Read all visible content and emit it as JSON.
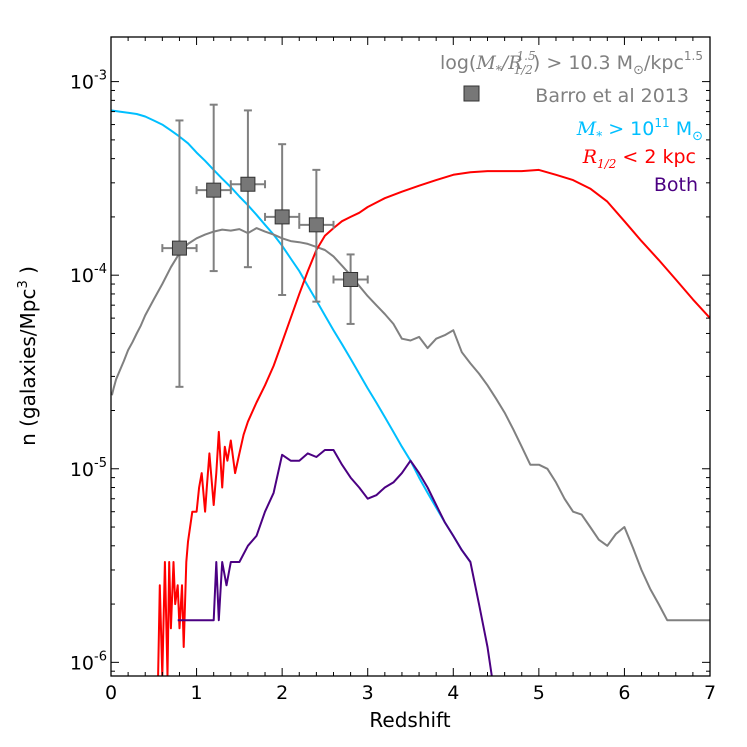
{
  "chart_data": {
    "type": "line",
    "xlabel": "Redshift",
    "ylabel_main": "n (galaxies/Mpc",
    "ylabel_sup": "3",
    "ylabel_end": " )",
    "xlim": [
      0,
      7
    ],
    "ylim": [
      8.5e-07,
      0.0017
    ],
    "yscale": "log",
    "x_ticks": [
      0,
      1,
      2,
      3,
      4,
      5,
      6,
      7
    ],
    "x_tick_labels": [
      "0",
      "1",
      "2",
      "3",
      "4",
      "5",
      "6",
      "7"
    ],
    "y_ticks": [
      {
        "value": 0.001,
        "base": "10",
        "exp": "-3"
      },
      {
        "value": 0.0001,
        "base": "10",
        "exp": "-4"
      },
      {
        "value": 1e-05,
        "base": "10",
        "exp": "-5"
      },
      {
        "value": 1e-06,
        "base": "10",
        "exp": "-6"
      }
    ],
    "legend": [
      {
        "id": "density",
        "pre_math": "log(",
        "math": "M",
        "math_sub": "*",
        "math_mid": "/R",
        "math_sup": "1.5",
        "math_sub2": "1/2",
        "post": ") > 10.3 M",
        "post_sub": "⊙",
        "post2": "/kpc",
        "post_sup": "1.5",
        "color": "#808080"
      },
      {
        "id": "barro",
        "text": "Barro et al 2013",
        "color": "#808080"
      },
      {
        "id": "mass",
        "math": "M",
        "math_sub": "*",
        "text": " > 10",
        "sup": "11",
        "text2": " M",
        "sub2": "⊙",
        "color": "#00bfff"
      },
      {
        "id": "size",
        "math": "R",
        "math_sub": "1/2",
        "text": " < 2 kpc",
        "color": "#ff0000"
      },
      {
        "id": "both",
        "text": "Both",
        "color": "#4b0082"
      }
    ],
    "series": [
      {
        "name": "Mass > 1e11",
        "color": "#00bfff",
        "x": [
          0,
          0.1,
          0.2,
          0.3,
          0.4,
          0.5,
          0.6,
          0.7,
          0.8,
          0.9,
          1.0,
          1.1,
          1.2,
          1.3,
          1.4,
          1.5,
          1.6,
          1.7,
          1.8,
          1.9,
          2.0,
          2.1,
          2.2,
          2.3,
          2.4,
          2.5,
          2.6,
          2.7,
          2.8,
          2.9,
          3.0,
          3.1,
          3.2,
          3.3,
          3.4,
          3.5,
          3.6,
          3.7,
          3.8,
          3.9,
          4.0,
          4.1,
          4.2
        ],
        "y": [
          0.00071,
          0.0007,
          0.00069,
          0.00068,
          0.00066,
          0.00063,
          0.0006,
          0.00056,
          0.00052,
          0.00048,
          0.00043,
          0.00039,
          0.00035,
          0.000315,
          0.000285,
          0.000255,
          0.00023,
          0.000205,
          0.000182,
          0.000162,
          0.000142,
          0.000122,
          0.000105,
          8.8e-05,
          7.4e-05,
          6.2e-05,
          5.2e-05,
          4.4e-05,
          3.7e-05,
          3.1e-05,
          2.6e-05,
          2.2e-05,
          1.85e-05,
          1.55e-05,
          1.3e-05,
          1.1e-05,
          9e-06,
          7.5e-06,
          6.3e-06,
          5.3e-06,
          4.5e-06,
          3.8e-06,
          3.3e-06
        ]
      },
      {
        "name": "Compact density",
        "color": "#808080",
        "x": [
          0.01,
          0.03,
          0.06,
          0.1,
          0.15,
          0.2,
          0.25,
          0.3,
          0.35,
          0.4,
          0.5,
          0.6,
          0.7,
          0.8,
          0.9,
          1.0,
          1.1,
          1.2,
          1.3,
          1.4,
          1.5,
          1.6,
          1.7,
          1.8,
          1.9,
          2.0,
          2.1,
          2.2,
          2.3,
          2.4,
          2.5,
          2.6,
          2.7,
          2.8,
          2.9,
          3.0,
          3.1,
          3.2,
          3.3,
          3.4,
          3.5,
          3.6,
          3.7,
          3.8,
          3.9,
          4.0,
          4.1,
          4.2,
          4.3,
          4.4,
          4.5,
          4.6,
          4.7,
          4.8,
          4.9,
          5.0,
          5.1,
          5.2,
          5.3,
          5.4,
          5.5,
          5.6,
          5.7,
          5.8,
          5.9,
          6.0,
          6.1,
          6.2,
          6.3,
          6.4,
          6.5,
          6.6,
          6.7,
          6.8,
          6.9,
          7.0
        ],
        "y": [
          2.4e-05,
          2.6e-05,
          2.9e-05,
          3.2e-05,
          3.6e-05,
          4.1e-05,
          4.5e-05,
          5e-05,
          5.5e-05,
          6.2e-05,
          7.5e-05,
          9e-05,
          0.00011,
          0.00013,
          0.000145,
          0.000155,
          0.000162,
          0.000168,
          0.000172,
          0.00017,
          0.000173,
          0.000165,
          0.000175,
          0.000168,
          0.000162,
          0.000155,
          0.00015,
          0.000148,
          0.000145,
          0.00014,
          0.000135,
          0.000125,
          0.000112,
          0.0001,
          8.8e-05,
          7.8e-05,
          7e-05,
          6.3e-05,
          5.6e-05,
          4.7e-05,
          4.6e-05,
          4.8e-05,
          4.2e-05,
          4.7e-05,
          4.9e-05,
          5.2e-05,
          4e-05,
          3.5e-05,
          3.1e-05,
          2.7e-05,
          2.3e-05,
          1.95e-05,
          1.6e-05,
          1.3e-05,
          1.05e-05,
          1.05e-05,
          1e-05,
          8.5e-06,
          7e-06,
          6e-06,
          5.8e-06,
          5e-06,
          4.3e-06,
          4e-06,
          4.6e-06,
          5e-06,
          3.9e-06,
          3e-06,
          2.4e-06,
          2e-06,
          1.65e-06,
          1.65e-06,
          1.65e-06,
          1.65e-06,
          1.65e-06,
          1.65e-06
        ]
      },
      {
        "name": "Size < 2 kpc",
        "color": "#ff0000",
        "x": [
          0.55,
          0.57,
          0.6,
          0.63,
          0.66,
          0.68,
          0.7,
          0.73,
          0.75,
          0.78,
          0.8,
          0.83,
          0.85,
          0.88,
          0.9,
          0.95,
          1.0,
          1.03,
          1.06,
          1.1,
          1.12,
          1.15,
          1.2,
          1.23,
          1.26,
          1.3,
          1.33,
          1.36,
          1.4,
          1.45,
          1.5,
          1.55,
          1.6,
          1.7,
          1.8,
          1.9,
          2.0,
          2.1,
          2.2,
          2.3,
          2.4,
          2.5,
          2.6,
          2.7,
          2.8,
          2.9,
          3.0,
          3.2,
          3.4,
          3.6,
          3.8,
          4.0,
          4.2,
          4.4,
          4.6,
          4.8,
          5.0,
          5.2,
          5.4,
          5.6,
          5.8,
          6.0,
          6.2,
          6.4,
          6.6,
          6.8,
          7.0
        ],
        "y": [
          8.5e-07,
          2.5e-06,
          8.5e-07,
          3.3e-06,
          8.5e-07,
          3.3e-06,
          1.5e-06,
          3.3e-06,
          2e-06,
          2.5e-06,
          1.5e-06,
          2.5e-06,
          1.2e-06,
          3.3e-06,
          4.2e-06,
          6e-06,
          6e-06,
          8e-06,
          9.5e-06,
          6e-06,
          8e-06,
          1.2e-05,
          6.5e-06,
          9.5e-06,
          1.55e-05,
          8e-06,
          1.3e-05,
          1.1e-05,
          1.4e-05,
          9.5e-06,
          1.2e-05,
          1.5e-05,
          1.75e-05,
          2.2e-05,
          2.7e-05,
          3.4e-05,
          4.5e-05,
          6e-05,
          8e-05,
          0.000105,
          0.000135,
          0.00016,
          0.000175,
          0.00019,
          0.0002,
          0.00021,
          0.000225,
          0.00025,
          0.00027,
          0.00029,
          0.00031,
          0.00033,
          0.00034,
          0.000345,
          0.000345,
          0.000345,
          0.00035,
          0.00033,
          0.00031,
          0.00028,
          0.00024,
          0.00019,
          0.00015,
          0.00012,
          9.5e-05,
          7.5e-05,
          6e-05
        ]
      },
      {
        "name": "Both",
        "color": "#4b0082",
        "x": [
          0.78,
          0.85,
          0.92,
          1.0,
          1.1,
          1.15,
          1.2,
          1.23,
          1.26,
          1.3,
          1.35,
          1.4,
          1.5,
          1.6,
          1.7,
          1.8,
          1.9,
          2.0,
          2.1,
          2.2,
          2.3,
          2.4,
          2.5,
          2.6,
          2.7,
          2.8,
          2.9,
          3.0,
          3.1,
          3.2,
          3.3,
          3.4,
          3.5,
          3.6,
          3.7,
          3.8,
          3.9,
          4.0,
          4.1,
          4.2,
          4.3,
          4.4,
          4.45
        ],
        "y": [
          1.65e-06,
          1.65e-06,
          1.65e-06,
          1.65e-06,
          1.65e-06,
          1.65e-06,
          1.65e-06,
          3.3e-06,
          1.65e-06,
          3.3e-06,
          2.5e-06,
          3.3e-06,
          3.3e-06,
          4e-06,
          4.5e-06,
          6e-06,
          7.5e-06,
          1.18e-05,
          1.1e-05,
          1.1e-05,
          1.2e-05,
          1.15e-05,
          1.25e-05,
          1.25e-05,
          1.05e-05,
          9e-06,
          8e-06,
          7e-06,
          7.3e-06,
          8e-06,
          8.5e-06,
          9.5e-06,
          1.1e-05,
          9.5e-06,
          8e-06,
          6.5e-06,
          5.3e-06,
          4.5e-06,
          3.8e-06,
          3.3e-06,
          2e-06,
          1.2e-06,
          8.5e-07
        ]
      }
    ],
    "errorbars": {
      "name": "Barro et al 2013",
      "color": "#808080",
      "points": [
        {
          "x": 0.8,
          "y": 0.000138,
          "xerr": 0.2,
          "ylo": 2.65e-05,
          "yhi": 0.00063
        },
        {
          "x": 1.2,
          "y": 0.000275,
          "xerr": 0.2,
          "ylo": 0.000105,
          "yhi": 0.00076
        },
        {
          "x": 1.6,
          "y": 0.000295,
          "xerr": 0.2,
          "ylo": 0.00011,
          "yhi": 0.00071
        },
        {
          "x": 2.0,
          "y": 0.0002,
          "xerr": 0.2,
          "ylo": 7.9e-05,
          "yhi": 0.000475
        },
        {
          "x": 2.4,
          "y": 0.000182,
          "xerr": 0.2,
          "ylo": 7.3e-05,
          "yhi": 0.00035
        },
        {
          "x": 2.8,
          "y": 9.5e-05,
          "xerr": 0.2,
          "ylo": 5.6e-05,
          "yhi": 0.000128
        }
      ]
    }
  }
}
